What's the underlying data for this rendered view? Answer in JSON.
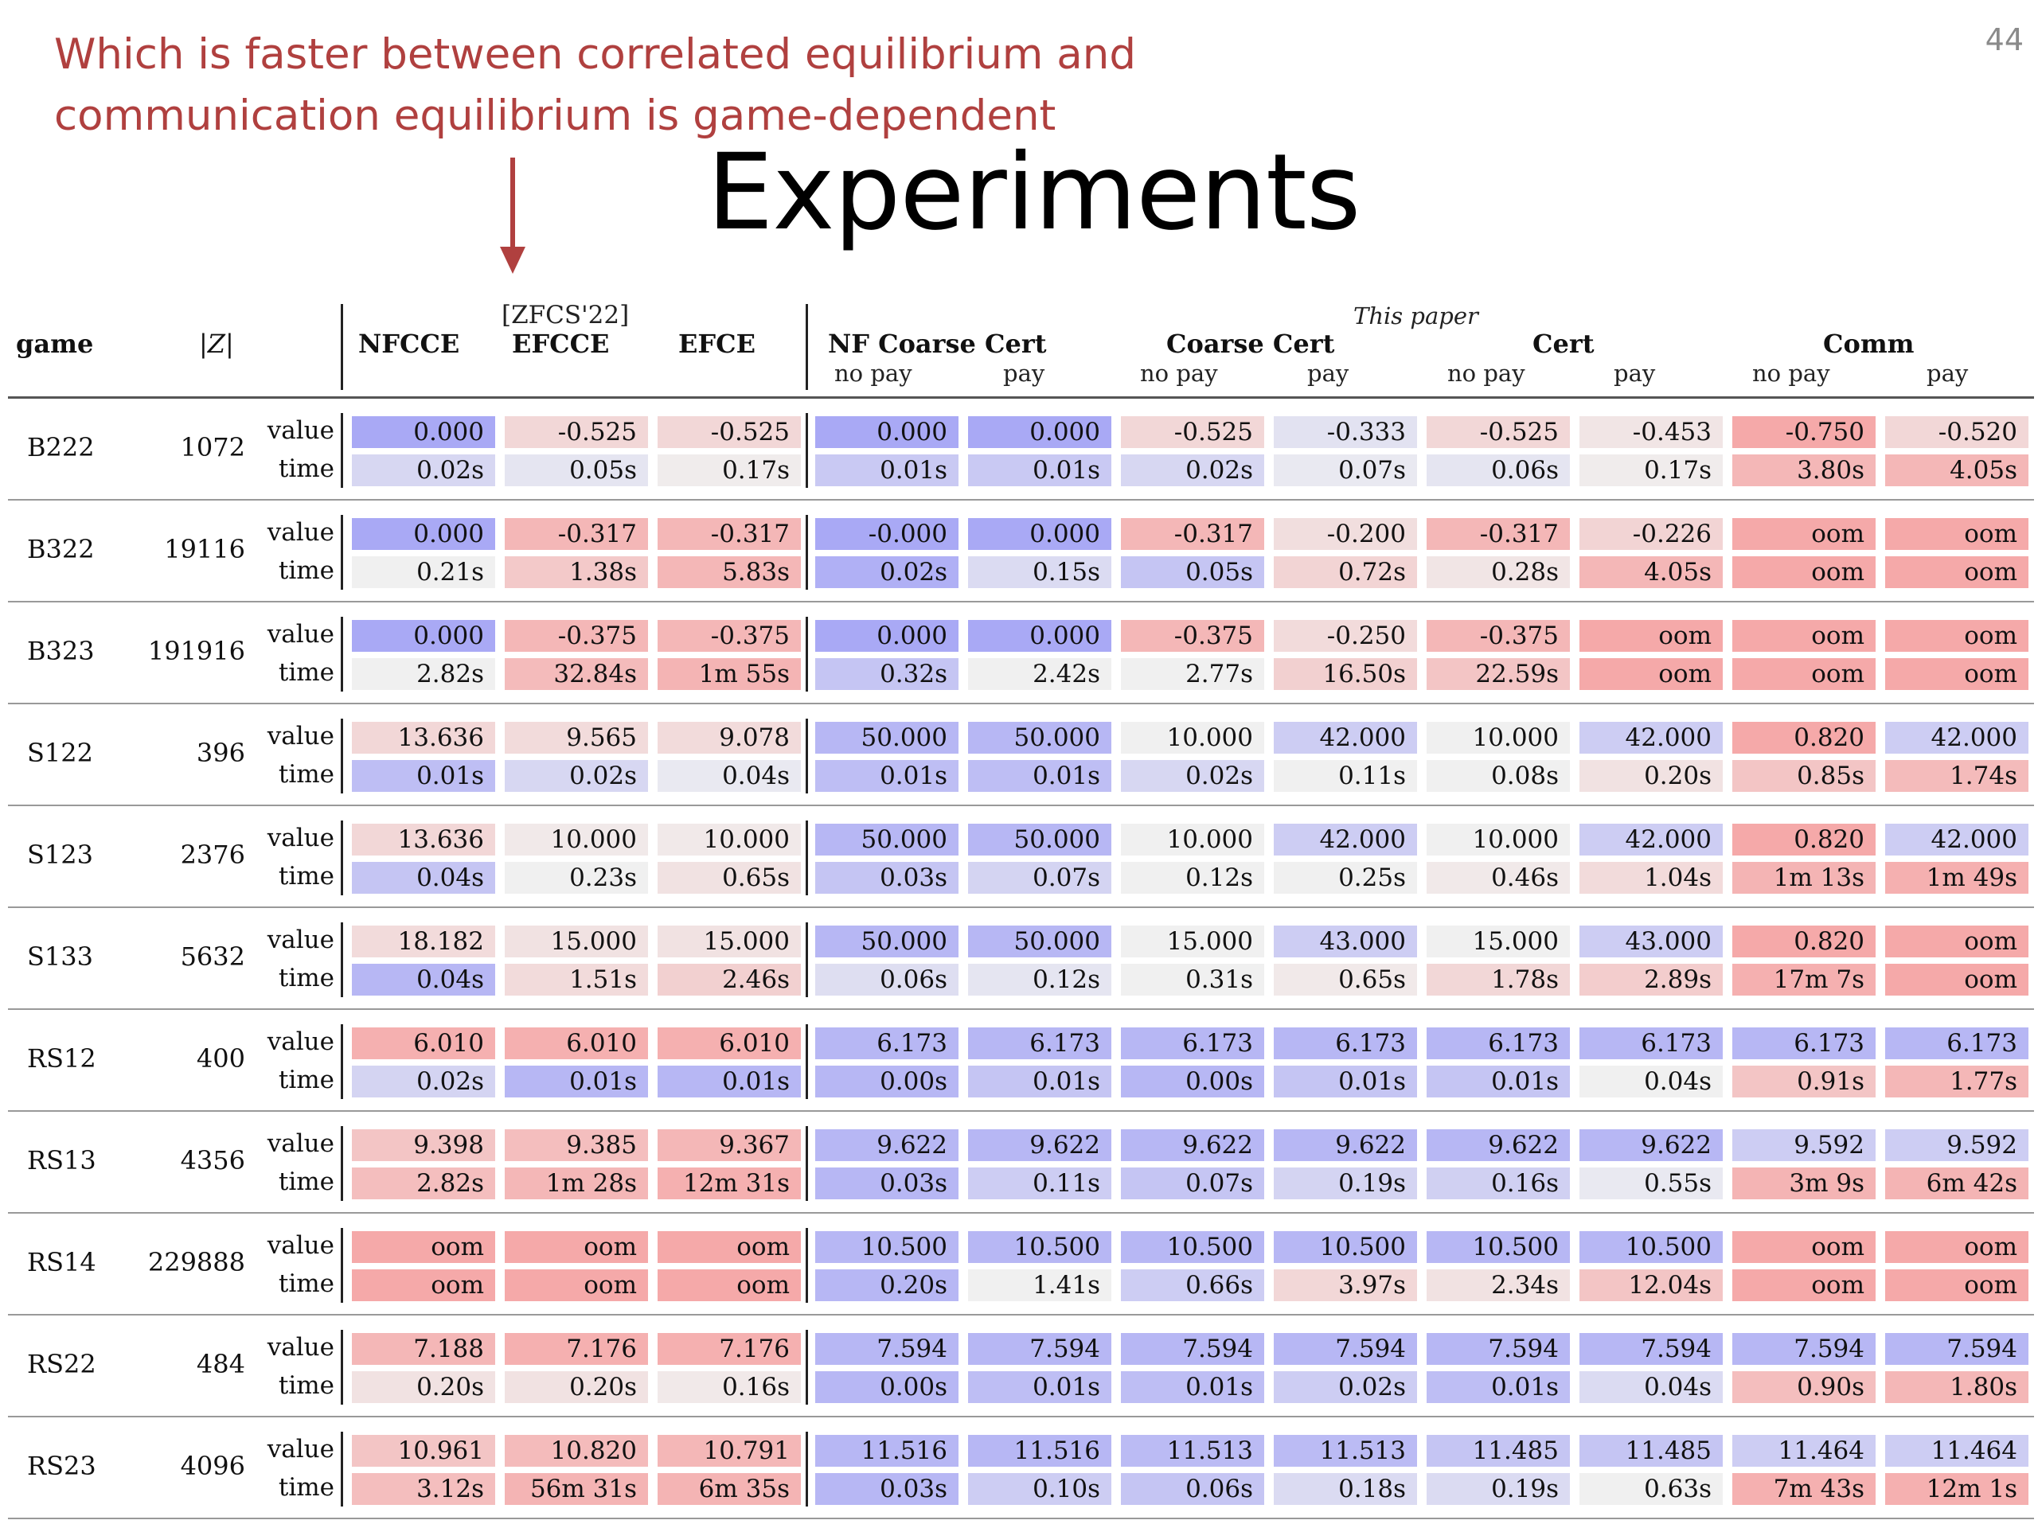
{
  "annotation": {
    "lines": [
      "Which is faster between correlated equilibrium and",
      "communication equilibrium is game-dependent"
    ],
    "color": "#b0403f"
  },
  "page_number": "44",
  "title": "Experiments",
  "table": {
    "headers": {
      "game": "game",
      "z": "|Z|",
      "nfcce": "NFCCE",
      "zfcs_ref": "[ZFCS'22]",
      "efcce": "EFCCE",
      "efce": "EFCE",
      "this_paper": "This paper",
      "nf_coarse_cert": "NF Coarse Cert",
      "coarse_cert": "Coarse Cert",
      "cert": "Cert",
      "comm": "Comm",
      "subheaders": [
        "no pay",
        "pay",
        "no pay",
        "pay",
        "no pay",
        "pay",
        "no pay",
        "pay"
      ]
    },
    "row_labels": {
      "value": "value",
      "time": "time"
    },
    "colors": {
      "blue": "#a9a9f5",
      "red": "#f5a9a9",
      "neutral": "#eeeeee"
    },
    "rows": [
      {
        "game": "B222",
        "z": "1072",
        "value": [
          "0.000",
          "-0.525",
          "-0.525",
          "0.000",
          "0.000",
          "-0.525",
          "-0.333",
          "-0.525",
          "-0.453",
          "-0.750",
          "-0.520"
        ],
        "value_shade": [
          -1.0,
          0.35,
          0.35,
          -1.0,
          -1.0,
          0.35,
          -0.2,
          0.35,
          0.15,
          1.0,
          0.35
        ],
        "time": [
          "0.02s",
          "0.05s",
          "0.17s",
          "0.01s",
          "0.01s",
          "0.02s",
          "0.07s",
          "0.06s",
          "0.17s",
          "3.80s",
          "4.05s"
        ],
        "time_shade": [
          -0.35,
          -0.15,
          0.05,
          -0.55,
          -0.55,
          -0.35,
          -0.1,
          -0.15,
          0.05,
          0.8,
          0.8
        ]
      },
      {
        "game": "B322",
        "z": "19116",
        "value": [
          "0.000",
          "-0.317",
          "-0.317",
          "-0.000",
          "0.000",
          "-0.317",
          "-0.200",
          "-0.317",
          "-0.226",
          "oom",
          "oom"
        ],
        "value_shade": [
          -1.0,
          0.8,
          0.8,
          -1.0,
          -1.0,
          0.8,
          0.25,
          0.8,
          0.4,
          1.0,
          1.0
        ],
        "time": [
          "0.21s",
          "1.38s",
          "5.83s",
          "0.02s",
          "0.15s",
          "0.05s",
          "0.72s",
          "0.28s",
          "4.05s",
          "oom",
          "oom"
        ],
        "time_shade": [
          0.0,
          0.55,
          0.8,
          -0.9,
          -0.3,
          -0.6,
          0.4,
          0.15,
          0.8,
          1.0,
          1.0
        ]
      },
      {
        "game": "B323",
        "z": "191916",
        "value": [
          "0.000",
          "-0.375",
          "-0.375",
          "0.000",
          "0.000",
          "-0.375",
          "-0.250",
          "-0.375",
          "oom",
          "oom",
          "oom"
        ],
        "value_shade": [
          -1.0,
          0.8,
          0.8,
          -1.0,
          -1.0,
          0.8,
          0.3,
          0.8,
          1.0,
          1.0,
          1.0
        ],
        "time": [
          "2.82s",
          "32.84s",
          "1m 55s",
          "0.32s",
          "2.42s",
          "2.77s",
          "16.50s",
          "22.59s",
          "oom",
          "oom",
          "oom"
        ],
        "time_shade": [
          0.0,
          0.75,
          0.85,
          -0.6,
          0.0,
          0.0,
          0.45,
          0.6,
          1.0,
          1.0,
          1.0
        ]
      },
      {
        "game": "S122",
        "z": "396",
        "value": [
          "13.636",
          "9.565",
          "9.078",
          "50.000",
          "50.000",
          "10.000",
          "42.000",
          "10.000",
          "42.000",
          "0.820",
          "42.000"
        ],
        "value_shade": [
          0.35,
          0.3,
          0.3,
          -0.8,
          -0.8,
          0.0,
          -0.5,
          0.0,
          -0.5,
          1.0,
          -0.5
        ],
        "time": [
          "0.01s",
          "0.02s",
          "0.04s",
          "0.01s",
          "0.01s",
          "0.02s",
          "0.11s",
          "0.08s",
          "0.20s",
          "0.85s",
          "1.74s"
        ],
        "time_shade": [
          -0.7,
          -0.35,
          -0.1,
          -0.7,
          -0.7,
          -0.35,
          0.0,
          0.0,
          0.2,
          0.6,
          0.75
        ]
      },
      {
        "game": "S123",
        "z": "2376",
        "value": [
          "13.636",
          "10.000",
          "10.000",
          "50.000",
          "50.000",
          "10.000",
          "42.000",
          "10.000",
          "42.000",
          "0.820",
          "42.000"
        ],
        "value_shade": [
          0.35,
          0.1,
          0.1,
          -0.8,
          -0.8,
          0.0,
          -0.5,
          0.0,
          -0.5,
          1.0,
          -0.5
        ],
        "time": [
          "0.04s",
          "0.23s",
          "0.65s",
          "0.03s",
          "0.07s",
          "0.12s",
          "0.25s",
          "0.46s",
          "1.04s",
          "1m 13s",
          "1m 49s"
        ],
        "time_shade": [
          -0.6,
          0.0,
          0.2,
          -0.6,
          -0.4,
          0.0,
          0.0,
          0.1,
          0.3,
          0.85,
          0.9
        ]
      },
      {
        "game": "S133",
        "z": "5632",
        "value": [
          "18.182",
          "15.000",
          "15.000",
          "50.000",
          "50.000",
          "15.000",
          "43.000",
          "15.000",
          "43.000",
          "0.820",
          "oom"
        ],
        "value_shade": [
          0.3,
          0.2,
          0.2,
          -0.8,
          -0.8,
          0.0,
          -0.5,
          0.0,
          -0.5,
          1.0,
          1.0
        ],
        "time": [
          "0.04s",
          "1.51s",
          "2.46s",
          "0.06s",
          "0.12s",
          "0.31s",
          "0.65s",
          "1.78s",
          "2.89s",
          "17m 7s",
          "oom"
        ],
        "time_shade": [
          -0.8,
          0.3,
          0.45,
          -0.25,
          -0.15,
          0.0,
          0.1,
          0.35,
          0.5,
          0.9,
          1.0
        ]
      },
      {
        "game": "RS12",
        "z": "400",
        "value": [
          "6.010",
          "6.010",
          "6.010",
          "6.173",
          "6.173",
          "6.173",
          "6.173",
          "6.173",
          "6.173",
          "6.173",
          "6.173"
        ],
        "value_shade": [
          0.9,
          0.9,
          0.9,
          -0.8,
          -0.8,
          -0.8,
          -0.8,
          -0.8,
          -0.8,
          -0.8,
          -0.8
        ],
        "time": [
          "0.02s",
          "0.01s",
          "0.01s",
          "0.00s",
          "0.01s",
          "0.00s",
          "0.01s",
          "0.01s",
          "0.04s",
          "0.91s",
          "1.77s"
        ],
        "time_shade": [
          -0.4,
          -0.8,
          -0.8,
          -0.8,
          -0.6,
          -0.8,
          -0.6,
          -0.6,
          0.0,
          0.6,
          0.8
        ]
      },
      {
        "game": "RS13",
        "z": "4356",
        "value": [
          "9.398",
          "9.385",
          "9.367",
          "9.622",
          "9.622",
          "9.622",
          "9.622",
          "9.622",
          "9.622",
          "9.592",
          "9.592"
        ],
        "value_shade": [
          0.6,
          0.7,
          0.8,
          -0.8,
          -0.8,
          -0.8,
          -0.8,
          -0.8,
          -0.8,
          -0.5,
          -0.5
        ],
        "time": [
          "2.82s",
          "1m 28s",
          "12m 31s",
          "0.03s",
          "0.11s",
          "0.07s",
          "0.19s",
          "0.16s",
          "0.55s",
          "3m 9s",
          "6m 42s"
        ],
        "time_shade": [
          0.7,
          0.8,
          0.9,
          -0.8,
          -0.5,
          -0.6,
          -0.4,
          -0.45,
          -0.1,
          0.85,
          0.85
        ]
      },
      {
        "game": "RS14",
        "z": "229888",
        "value": [
          "oom",
          "oom",
          "oom",
          "10.500",
          "10.500",
          "10.500",
          "10.500",
          "10.500",
          "10.500",
          "oom",
          "oom"
        ],
        "value_shade": [
          1.0,
          1.0,
          1.0,
          -0.8,
          -0.8,
          -0.8,
          -0.8,
          -0.8,
          -0.8,
          1.0,
          1.0
        ],
        "time": [
          "oom",
          "oom",
          "oom",
          "0.20s",
          "1.41s",
          "0.66s",
          "3.97s",
          "2.34s",
          "12.04s",
          "oom",
          "oom"
        ],
        "time_shade": [
          1.0,
          1.0,
          1.0,
          -0.8,
          0.0,
          -0.5,
          0.35,
          0.2,
          0.6,
          1.0,
          1.0
        ]
      },
      {
        "game": "RS22",
        "z": "484",
        "value": [
          "7.188",
          "7.176",
          "7.176",
          "7.594",
          "7.594",
          "7.594",
          "7.594",
          "7.594",
          "7.594",
          "7.594",
          "7.594"
        ],
        "value_shade": [
          0.8,
          0.9,
          0.9,
          -0.8,
          -0.8,
          -0.8,
          -0.8,
          -0.8,
          -0.8,
          -0.8,
          -0.8
        ],
        "time": [
          "0.20s",
          "0.20s",
          "0.16s",
          "0.00s",
          "0.01s",
          "0.01s",
          "0.02s",
          "0.01s",
          "0.04s",
          "0.90s",
          "1.80s"
        ],
        "time_shade": [
          0.2,
          0.2,
          0.1,
          -0.8,
          -0.7,
          -0.7,
          -0.5,
          -0.7,
          -0.3,
          0.7,
          0.8
        ]
      },
      {
        "game": "RS23",
        "z": "4096",
        "value": [
          "10.961",
          "10.820",
          "10.791",
          "11.516",
          "11.516",
          "11.513",
          "11.513",
          "11.485",
          "11.485",
          "11.464",
          "11.464"
        ],
        "value_shade": [
          0.6,
          0.75,
          0.8,
          -0.8,
          -0.8,
          -0.75,
          -0.75,
          -0.6,
          -0.6,
          -0.5,
          -0.5
        ],
        "time": [
          "3.12s",
          "56m 31s",
          "6m 35s",
          "0.03s",
          "0.10s",
          "0.06s",
          "0.18s",
          "0.19s",
          "0.63s",
          "7m 43s",
          "12m 1s"
        ],
        "time_shade": [
          0.7,
          0.85,
          0.85,
          -0.8,
          -0.5,
          -0.6,
          -0.3,
          -0.3,
          0.0,
          0.9,
          0.9
        ]
      }
    ]
  }
}
